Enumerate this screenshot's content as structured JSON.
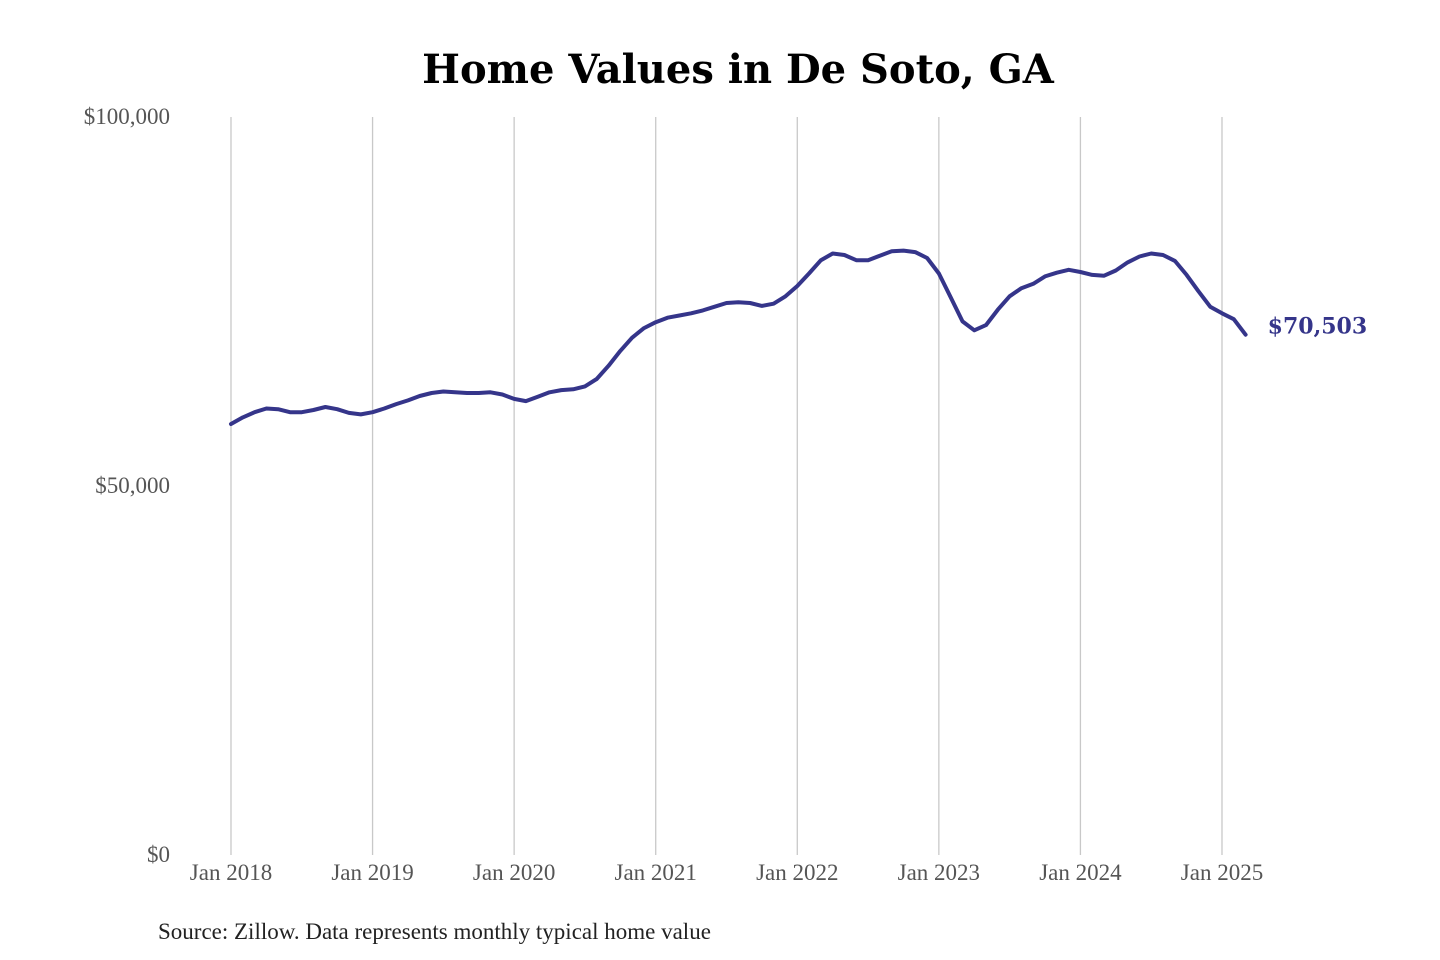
{
  "chart_data": {
    "type": "line",
    "title": "Home Values in De Soto, GA",
    "xlabel": "",
    "ylabel": "",
    "source": "Source: Zillow. Data represents monthly typical home value",
    "ylim": [
      0,
      100000
    ],
    "yticks": [
      {
        "value": 0,
        "label": "$0"
      },
      {
        "value": 50000,
        "label": "$50,000"
      },
      {
        "value": 100000,
        "label": "$100,000"
      }
    ],
    "xticks": [
      {
        "value": 2018.0,
        "label": "Jan 2018"
      },
      {
        "value": 2019.0,
        "label": "Jan 2019"
      },
      {
        "value": 2020.0,
        "label": "Jan 2020"
      },
      {
        "value": 2021.0,
        "label": "Jan 2021"
      },
      {
        "value": 2022.0,
        "label": "Jan 2022"
      },
      {
        "value": 2023.0,
        "label": "Jan 2023"
      },
      {
        "value": 2024.0,
        "label": "Jan 2024"
      },
      {
        "value": 2025.0,
        "label": "Jan 2025"
      }
    ],
    "xlim": [
      2018.0,
      2025.17
    ],
    "grid": "vertical",
    "series_color": "#35358a",
    "end_label": "$70,503",
    "series": [
      {
        "name": "Typical home value",
        "x": [
          2018.0,
          2018.083,
          2018.167,
          2018.25,
          2018.333,
          2018.417,
          2018.5,
          2018.583,
          2018.667,
          2018.75,
          2018.833,
          2018.917,
          2019.0,
          2019.083,
          2019.167,
          2019.25,
          2019.333,
          2019.417,
          2019.5,
          2019.583,
          2019.667,
          2019.75,
          2019.833,
          2019.917,
          2020.0,
          2020.083,
          2020.167,
          2020.25,
          2020.333,
          2020.417,
          2020.5,
          2020.583,
          2020.667,
          2020.75,
          2020.833,
          2020.917,
          2021.0,
          2021.083,
          2021.167,
          2021.25,
          2021.333,
          2021.417,
          2021.5,
          2021.583,
          2021.667,
          2021.75,
          2021.833,
          2021.917,
          2022.0,
          2022.083,
          2022.167,
          2022.25,
          2022.333,
          2022.417,
          2022.5,
          2022.583,
          2022.667,
          2022.75,
          2022.833,
          2022.917,
          2023.0,
          2023.083,
          2023.167,
          2023.25,
          2023.333,
          2023.417,
          2023.5,
          2023.583,
          2023.667,
          2023.75,
          2023.833,
          2023.917,
          2024.0,
          2024.083,
          2024.167,
          2024.25,
          2024.333,
          2024.417,
          2024.5,
          2024.583,
          2024.667,
          2024.75,
          2024.833,
          2024.917,
          2025.0,
          2025.083,
          2025.167
        ],
        "values": [
          58400,
          59300,
          60000,
          60500,
          60400,
          60000,
          60000,
          60300,
          60700,
          60400,
          59900,
          59700,
          60000,
          60500,
          61100,
          61600,
          62200,
          62600,
          62800,
          62700,
          62600,
          62600,
          62700,
          62400,
          61800,
          61500,
          62100,
          62700,
          63000,
          63100,
          63500,
          64500,
          66300,
          68300,
          70100,
          71400,
          72200,
          72800,
          73100,
          73400,
          73800,
          74300,
          74800,
          74900,
          74800,
          74400,
          74700,
          75700,
          77100,
          78800,
          80600,
          81500,
          81300,
          80600,
          80600,
          81200,
          81800,
          81900,
          81700,
          80900,
          78800,
          75600,
          72300,
          71100,
          71800,
          73900,
          75700,
          76800,
          77400,
          78400,
          78900,
          79300,
          79000,
          78600,
          78500,
          79200,
          80300,
          81100,
          81500,
          81300,
          80500,
          78600,
          76400,
          74300,
          73400,
          72600,
          70503
        ]
      }
    ]
  }
}
